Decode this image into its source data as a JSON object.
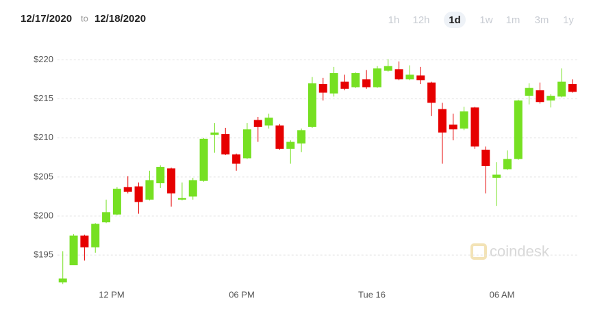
{
  "header": {
    "from": "12/17/2020",
    "sep": "to",
    "to": "12/18/2020",
    "ranges": [
      "1h",
      "12h",
      "1d",
      "1w",
      "1m",
      "3m",
      "1y"
    ],
    "selected": 2
  },
  "watermark": "coindesk",
  "chart_data": {
    "type": "candlestick",
    "up_color": "#76e022",
    "down_color": "#e60000",
    "x": [
      9.75,
      10.25,
      10.75,
      11.25,
      11.75,
      12.25,
      12.75,
      13.25,
      13.75,
      14.25,
      14.75,
      15.25,
      15.75,
      16.25,
      16.75,
      17.25,
      17.75,
      18.25,
      18.75,
      19.25,
      19.75,
      20.25,
      20.75,
      21.25,
      21.75,
      22.25,
      22.75,
      23.25,
      23.75,
      24.25,
      24.75,
      25.25,
      25.75,
      26.25,
      26.75,
      27.25,
      27.75,
      28.25,
      28.75,
      29.25,
      29.75,
      30.25,
      30.75,
      31.25,
      31.75,
      32.25,
      32.75,
      33.25
    ],
    "open": [
      191.5,
      193.7,
      197.5,
      196,
      199.2,
      200.2,
      203.7,
      203.8,
      202.1,
      204.2,
      206.1,
      202.1,
      202.5,
      204.5,
      210.4,
      210.5,
      207.9,
      207.4,
      212.3,
      211.6,
      211.6,
      208.6,
      209.3,
      211.4,
      216.9,
      215.7,
      217.2,
      216.5,
      217.5,
      216.5,
      218.6,
      218.8,
      217.5,
      218,
      217.1,
      213.7,
      211.7,
      211.2,
      213.9,
      208.5,
      204.9,
      206,
      207.3,
      215.4,
      216.1,
      214.8,
      215.3,
      216.9
    ],
    "high": [
      195.5,
      197.7,
      197.6,
      199.1,
      202.1,
      203.7,
      205.1,
      204.3,
      205.8,
      206.5,
      206.2,
      204.3,
      204.9,
      210,
      211.9,
      211.3,
      208,
      211.9,
      212.7,
      213.1,
      211.8,
      209.7,
      211.2,
      217.8,
      217.7,
      219.1,
      218.1,
      218.4,
      218.7,
      219.2,
      220.1,
      219.8,
      219.3,
      219.1,
      217.2,
      214.5,
      213.1,
      214,
      214,
      208.9,
      206.9,
      208.4,
      214.9,
      217,
      217.1,
      215.6,
      218.9,
      217.5
    ],
    "low": [
      191.3,
      193.7,
      194.3,
      195.3,
      199.1,
      200.1,
      202.9,
      200.3,
      202,
      203.6,
      201.2,
      202,
      202.1,
      204.4,
      208.1,
      207.8,
      205.8,
      207.3,
      209.5,
      211.2,
      208.5,
      206.7,
      208.2,
      211.3,
      214.8,
      215.3,
      216.1,
      216.4,
      216.3,
      216.4,
      218.5,
      217.4,
      217.4,
      216.9,
      212.8,
      206.7,
      209.7,
      211,
      208.6,
      202.9,
      201.3,
      205.9,
      207.2,
      214.3,
      214.4,
      213.9,
      215.2,
      215.8
    ],
    "close": [
      192,
      197.5,
      196,
      199,
      200.5,
      203.5,
      203.1,
      201.8,
      204.6,
      206.3,
      202.9,
      202.3,
      204.6,
      209.9,
      210.7,
      207.9,
      206.7,
      211.1,
      211.4,
      212.6,
      208.6,
      209.5,
      211,
      217,
      215.8,
      218.3,
      216.3,
      218.3,
      216.5,
      218.9,
      219.2,
      217.5,
      218.1,
      217.4,
      214.5,
      210.7,
      211.1,
      213.4,
      208.9,
      206.4,
      205.3,
      207.3,
      214.8,
      216.4,
      214.6,
      215.4,
      217.2,
      215.9
    ],
    "xlim": [
      9.5,
      33.5
    ],
    "xticks": [
      {
        "value": 12,
        "label": "12 PM"
      },
      {
        "value": 18,
        "label": "06 PM"
      },
      {
        "value": 24,
        "label": "Tue 16"
      },
      {
        "value": 30,
        "label": "06 AM"
      }
    ],
    "ylim": [
      190.9,
      221.1
    ],
    "yticks": [
      {
        "value": 195,
        "label": "$195"
      },
      {
        "value": 200,
        "label": "$200"
      },
      {
        "value": 205,
        "label": "$205"
      },
      {
        "value": 210,
        "label": "$210"
      },
      {
        "value": 215,
        "label": "$215"
      },
      {
        "value": 220,
        "label": "$220"
      }
    ],
    "grid": true
  }
}
